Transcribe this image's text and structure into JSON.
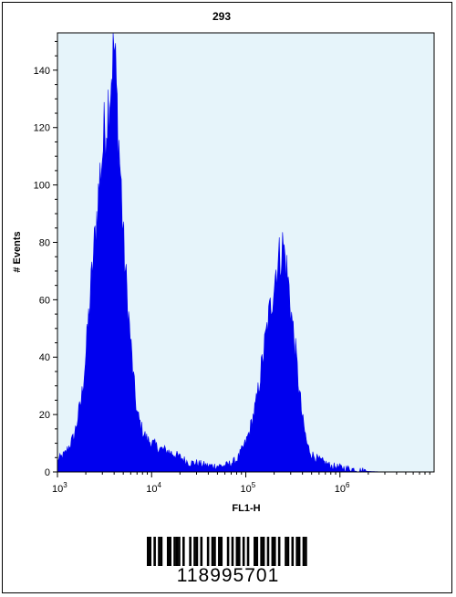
{
  "chart_data": {
    "type": "area",
    "title": "293",
    "xlabel": "FL1-H",
    "ylabel": "# Events",
    "x_scale": "log",
    "xlim": [
      1000,
      10000000
    ],
    "ylim": [
      0,
      153
    ],
    "x_ticks": [
      {
        "value": 1000,
        "base": "10",
        "exp": "3"
      },
      {
        "value": 10000,
        "base": "10",
        "exp": "4"
      },
      {
        "value": 100000,
        "base": "10",
        "exp": "5"
      },
      {
        "value": 1000000,
        "base": "10",
        "exp": "6"
      }
    ],
    "y_ticks": [
      0,
      20,
      40,
      60,
      80,
      100,
      120,
      140
    ],
    "fill_color": "#0000ee",
    "background_color": "#e6f4fa",
    "series": [
      {
        "x": [
          1000,
          1200,
          1500,
          1800,
          2000,
          2200,
          2500,
          2800,
          3000,
          3200,
          3500,
          3800,
          4000,
          4200,
          4500,
          4800,
          5000,
          5500,
          6000,
          6500,
          7000,
          8000,
          9000,
          10000,
          12000,
          15000,
          20000,
          25000,
          30000,
          40000,
          50000,
          60000,
          70000,
          80000,
          90000,
          100000,
          110000,
          130000,
          150000,
          170000,
          190000,
          210000,
          230000,
          250000,
          270000,
          290000,
          310000,
          340000,
          370000,
          400000,
          450000,
          500000,
          600000,
          700000,
          800000,
          1000000,
          1300000,
          1600000,
          2000000,
          3000000
        ],
        "y": [
          4,
          6,
          12,
          25,
          40,
          58,
          80,
          100,
          110,
          118,
          128,
          140,
          148,
          132,
          112,
          95,
          80,
          60,
          44,
          30,
          20,
          14,
          11,
          10,
          8,
          7,
          5,
          3,
          3,
          2,
          2,
          2,
          3,
          4,
          7,
          10,
          14,
          24,
          38,
          50,
          60,
          70,
          74,
          78,
          70,
          62,
          52,
          40,
          28,
          18,
          9,
          6,
          4,
          3,
          2,
          1.5,
          1,
          0.5,
          0.2,
          0
        ]
      }
    ]
  },
  "barcode": {
    "number": "118995701",
    "pattern": "1101011001101110100101101001011011001010110101001101101011010011010110110"
  }
}
